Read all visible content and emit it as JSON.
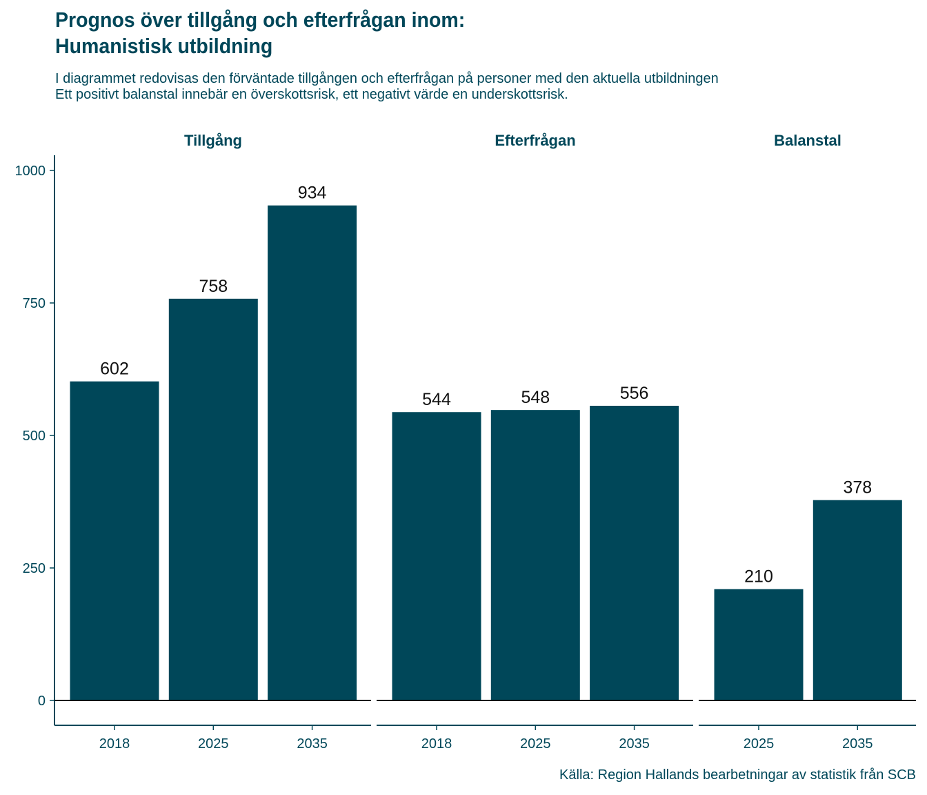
{
  "title_line1": "Prognos över tillgång och efterfrågan inom:",
  "title_line2": "Humanistisk utbildning",
  "subtitle_line1": "I diagrammet redovisas den förväntade tillgången och efterfrågan på personer med den aktuella utbildningen",
  "subtitle_line2": "Ett positivt balanstal innebär en överskottsrisk, ett negativt värde en underskottsrisk.",
  "caption": "Källa: Region Hallands bearbetningar av statistik från SCB",
  "colors": {
    "bar": "#004759",
    "text": "#004759",
    "axis": "#004759"
  },
  "chart_data": {
    "type": "bar",
    "ylim": [
      -50,
      1000
    ],
    "yticks": [
      0,
      250,
      500,
      750,
      1000
    ],
    "grid": false,
    "facets": [
      {
        "name": "Tillgång",
        "categories": [
          "2018",
          "2025",
          "2035"
        ],
        "values": [
          602,
          758,
          934
        ]
      },
      {
        "name": "Efterfrågan",
        "categories": [
          "2018",
          "2025",
          "2035"
        ],
        "values": [
          544,
          548,
          556
        ]
      },
      {
        "name": "Balanstal",
        "categories": [
          "2025",
          "2035"
        ],
        "values": [
          210,
          378
        ]
      }
    ]
  }
}
